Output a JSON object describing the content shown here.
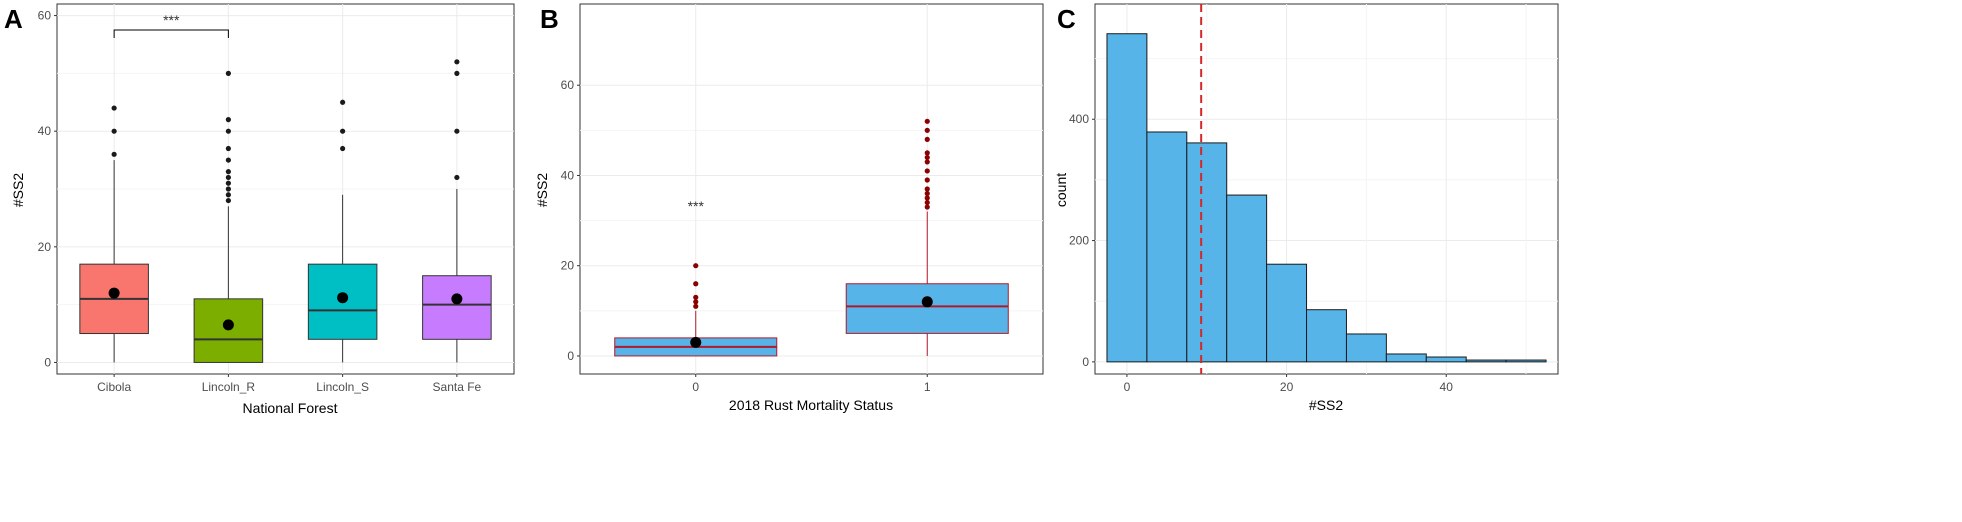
{
  "chart_data": [
    {
      "panel": "A",
      "type": "box",
      "xlabel": "National Forest",
      "ylabel": "#SS2",
      "ylim": [
        -2,
        62
      ],
      "yticks": [
        0,
        20,
        40,
        60
      ],
      "grid": true,
      "categories": [
        "Cibola",
        "Lincoln_R",
        "Lincoln_S",
        "Santa Fe"
      ],
      "colors": [
        "#f8766d",
        "#7cae00",
        "#00bfc4",
        "#c77cff"
      ],
      "boxes": [
        {
          "category": "Cibola",
          "min": 0,
          "q1": 5,
          "median": 11,
          "q3": 17,
          "max": 35,
          "mean": 12,
          "outliers": [
            36,
            40,
            44
          ]
        },
        {
          "category": "Lincoln_R",
          "min": 0,
          "q1": 0,
          "median": 4,
          "q3": 11,
          "max": 27,
          "mean": 6.5,
          "outliers": [
            28,
            29,
            30,
            31,
            32,
            33,
            35,
            37,
            40,
            42,
            50
          ]
        },
        {
          "category": "Lincoln_S",
          "min": 0,
          "q1": 4,
          "median": 9,
          "q3": 17,
          "max": 29,
          "mean": 11.2,
          "outliers": [
            37,
            40,
            45
          ]
        },
        {
          "category": "Santa Fe",
          "min": 0,
          "q1": 4,
          "median": 10,
          "q3": 15,
          "max": 30,
          "mean": 11,
          "outliers": [
            32,
            40,
            50,
            52
          ]
        }
      ],
      "annotation": {
        "text": "***",
        "from": "Cibola",
        "to": "Lincoln_R",
        "y": 57.5
      }
    },
    {
      "panel": "B",
      "type": "box",
      "xlabel": "2018 Rust Mortality Status",
      "ylabel": "#SS2",
      "ylim": [
        -4,
        78
      ],
      "yticks": [
        0,
        20,
        40,
        60
      ],
      "grid": true,
      "categories": [
        "0",
        "1"
      ],
      "fill": "#56b4e9",
      "line_color": "#b2182b",
      "boxes": [
        {
          "category": "0",
          "min": 0,
          "q1": 0,
          "median": 2,
          "q3": 4,
          "max": 10,
          "mean": 3,
          "outliers": [
            11,
            12,
            13,
            16,
            20
          ]
        },
        {
          "category": "1",
          "min": 0,
          "q1": 5,
          "median": 11,
          "q3": 16,
          "max": 32,
          "mean": 12,
          "outliers": [
            33,
            34,
            35,
            36,
            37,
            39,
            41,
            43,
            44,
            45,
            48,
            50,
            52
          ]
        }
      ],
      "annotation": {
        "text": "***",
        "category": "0",
        "y": 33
      }
    },
    {
      "panel": "C",
      "type": "histogram",
      "xlabel": "#SS2",
      "ylabel": "count",
      "xlim": [
        -4,
        54
      ],
      "ylim": [
        -20,
        590
      ],
      "xticks": [
        0,
        20,
        40
      ],
      "yticks": [
        0,
        200,
        400
      ],
      "grid": true,
      "fill": "#56b4e9",
      "bin_edges": [
        -2.5,
        2.5,
        7.5,
        12.5,
        17.5,
        22.5,
        27.5,
        32.5,
        37.5,
        42.5,
        47.5,
        52.5
      ],
      "counts": [
        541,
        379,
        361,
        275,
        161,
        86,
        46,
        13,
        8,
        3,
        3
      ],
      "mean_line": {
        "x": 9.3,
        "color": "#d62728",
        "style": "dashed"
      }
    }
  ]
}
